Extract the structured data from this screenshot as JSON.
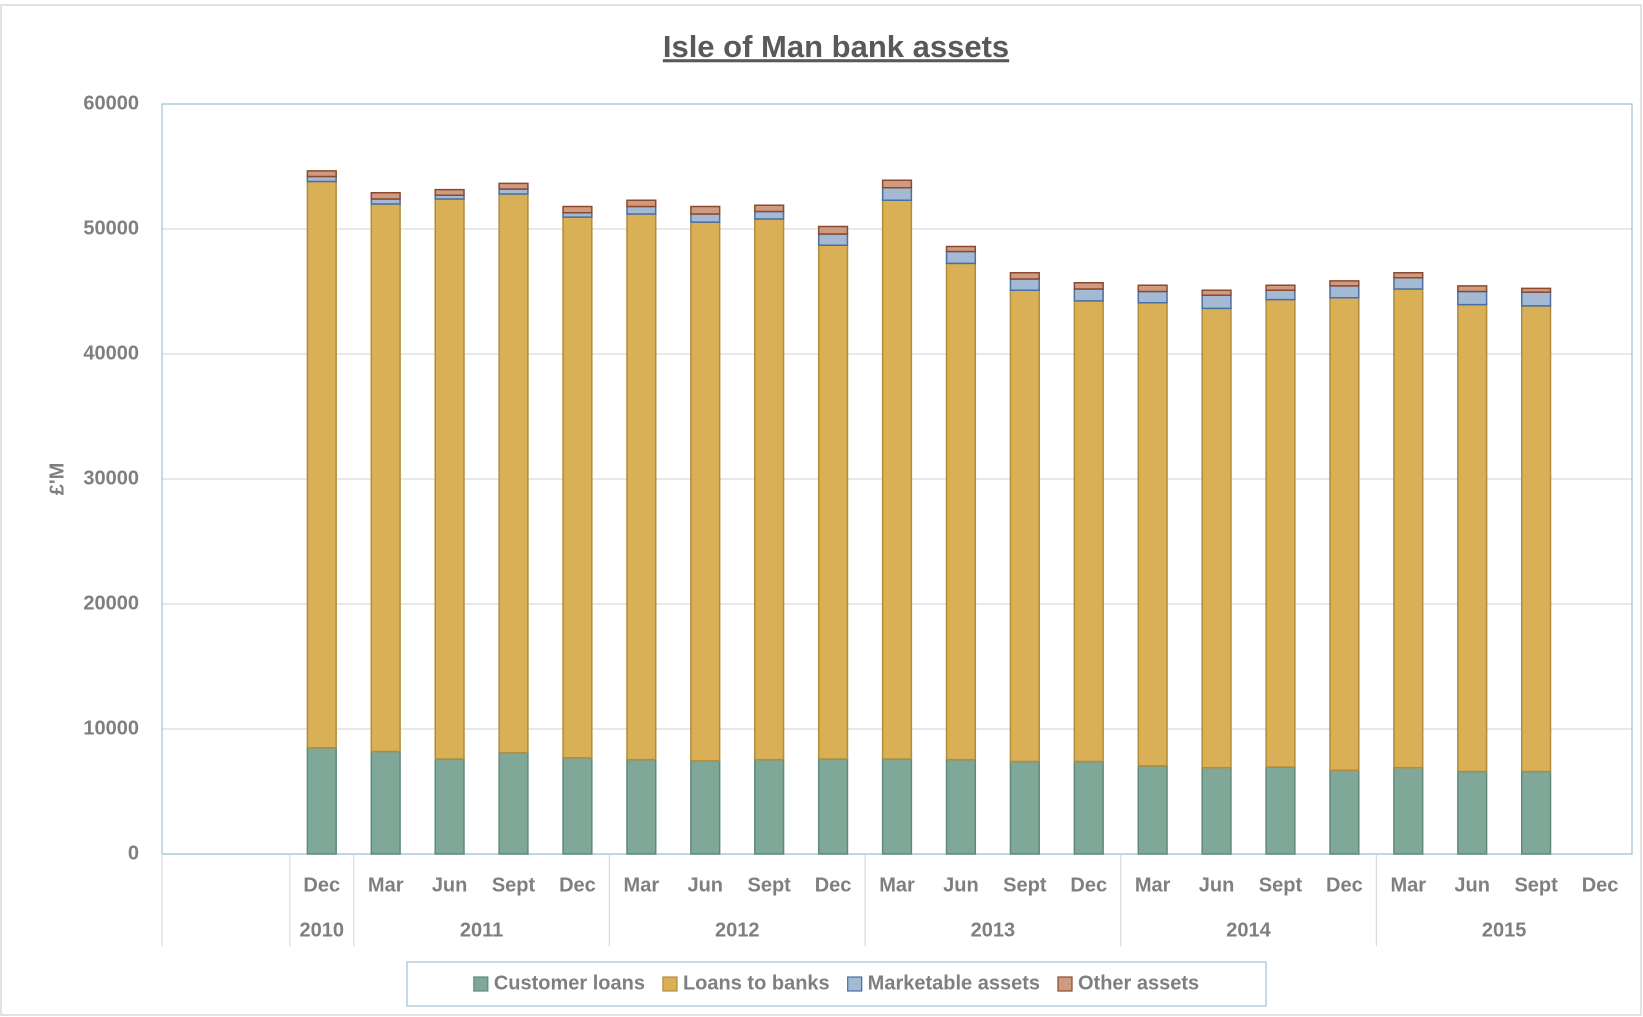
{
  "chart_data": {
    "type": "stacked_bar",
    "title": "Isle of Man bank assets",
    "y_label": "£'M",
    "categories": [
      null,
      null,
      "Dec",
      "Mar",
      "Jun",
      "Sept",
      "Dec",
      "Mar",
      "Jun",
      "Sept",
      "Dec",
      "Mar",
      "Jun",
      "Sept",
      "Dec",
      "Mar",
      "Jun",
      "Sept",
      "Dec",
      "Mar",
      "Jun",
      "Sept",
      "Dec"
    ],
    "years": [
      null,
      null,
      "2010",
      "2011",
      "2011",
      "2011",
      "2011",
      "2012",
      "2012",
      "2012",
      "2012",
      "2013",
      "2013",
      "2013",
      "2013",
      "2014",
      "2014",
      "2014",
      "2014",
      "2015",
      "2015",
      "2015",
      "2015"
    ],
    "series": [
      {
        "name": "Customer loans",
        "color": "#7fa899",
        "stroke": "#5f8a7b",
        "values": [
          null,
          null,
          8500,
          8200,
          7600,
          8100,
          7700,
          7550,
          7450,
          7550,
          7600,
          7600,
          7550,
          7400,
          7400,
          7050,
          6900,
          6950,
          6700,
          6900,
          6600,
          6600,
          null
        ]
      },
      {
        "name": "Loans to banks",
        "color": "#d9b056",
        "stroke": "#b08c3c",
        "values": [
          null,
          null,
          45300,
          43800,
          44800,
          44700,
          43250,
          43650,
          43100,
          43250,
          41100,
          44700,
          39700,
          37700,
          36850,
          37050,
          36750,
          37400,
          37800,
          38300,
          37350,
          37250,
          null
        ]
      },
      {
        "name": "Marketable assets",
        "color": "#a3b9d4",
        "stroke": "#4a6fa5",
        "values": [
          null,
          null,
          400,
          400,
          300,
          400,
          350,
          600,
          650,
          600,
          900,
          1000,
          950,
          900,
          950,
          900,
          1050,
          750,
          950,
          900,
          1050,
          1100,
          null
        ]
      },
      {
        "name": "Other assets",
        "color": "#cf9a80",
        "stroke": "#8b4a2f",
        "values": [
          null,
          null,
          450,
          500,
          450,
          450,
          500,
          500,
          600,
          500,
          600,
          600,
          400,
          500,
          500,
          500,
          400,
          400,
          400,
          400,
          450,
          300,
          null
        ]
      }
    ],
    "ylim": [
      0,
      60000
    ],
    "yticks": [
      0,
      10000,
      20000,
      30000,
      40000,
      50000,
      60000
    ],
    "grid": true,
    "legend": "bottom"
  }
}
